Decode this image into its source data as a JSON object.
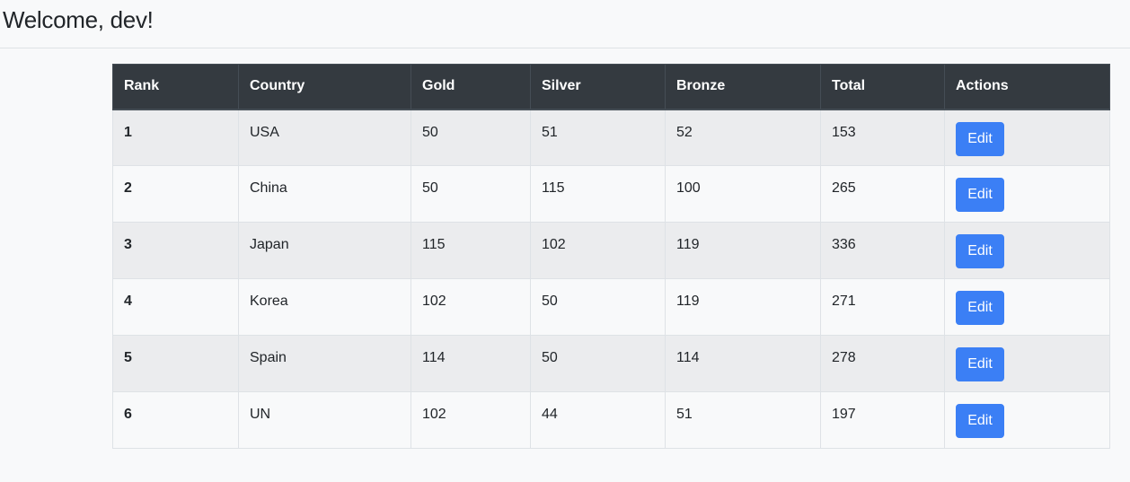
{
  "header": {
    "title": "Welcome, dev!"
  },
  "table": {
    "columns": [
      "Rank",
      "Country",
      "Gold",
      "Silver",
      "Bronze",
      "Total",
      "Actions"
    ],
    "rows": [
      {
        "rank": "1",
        "country": "USA",
        "gold": "50",
        "silver": "51",
        "bronze": "52",
        "total": "153",
        "action": "Edit"
      },
      {
        "rank": "2",
        "country": "China",
        "gold": "50",
        "silver": "115",
        "bronze": "100",
        "total": "265",
        "action": "Edit"
      },
      {
        "rank": "3",
        "country": "Japan",
        "gold": "115",
        "silver": "102",
        "bronze": "119",
        "total": "336",
        "action": "Edit"
      },
      {
        "rank": "4",
        "country": "Korea",
        "gold": "102",
        "silver": "50",
        "bronze": "119",
        "total": "271",
        "action": "Edit"
      },
      {
        "rank": "5",
        "country": "Spain",
        "gold": "114",
        "silver": "50",
        "bronze": "114",
        "total": "278",
        "action": "Edit"
      },
      {
        "rank": "6",
        "country": "UN",
        "gold": "102",
        "silver": "44",
        "bronze": "51",
        "total": "197",
        "action": "Edit"
      }
    ]
  },
  "colors": {
    "header_bg": "#343a40",
    "button": "#3b7ff5",
    "stripe": "#ebecee",
    "page_bg": "#f8f9fa"
  }
}
